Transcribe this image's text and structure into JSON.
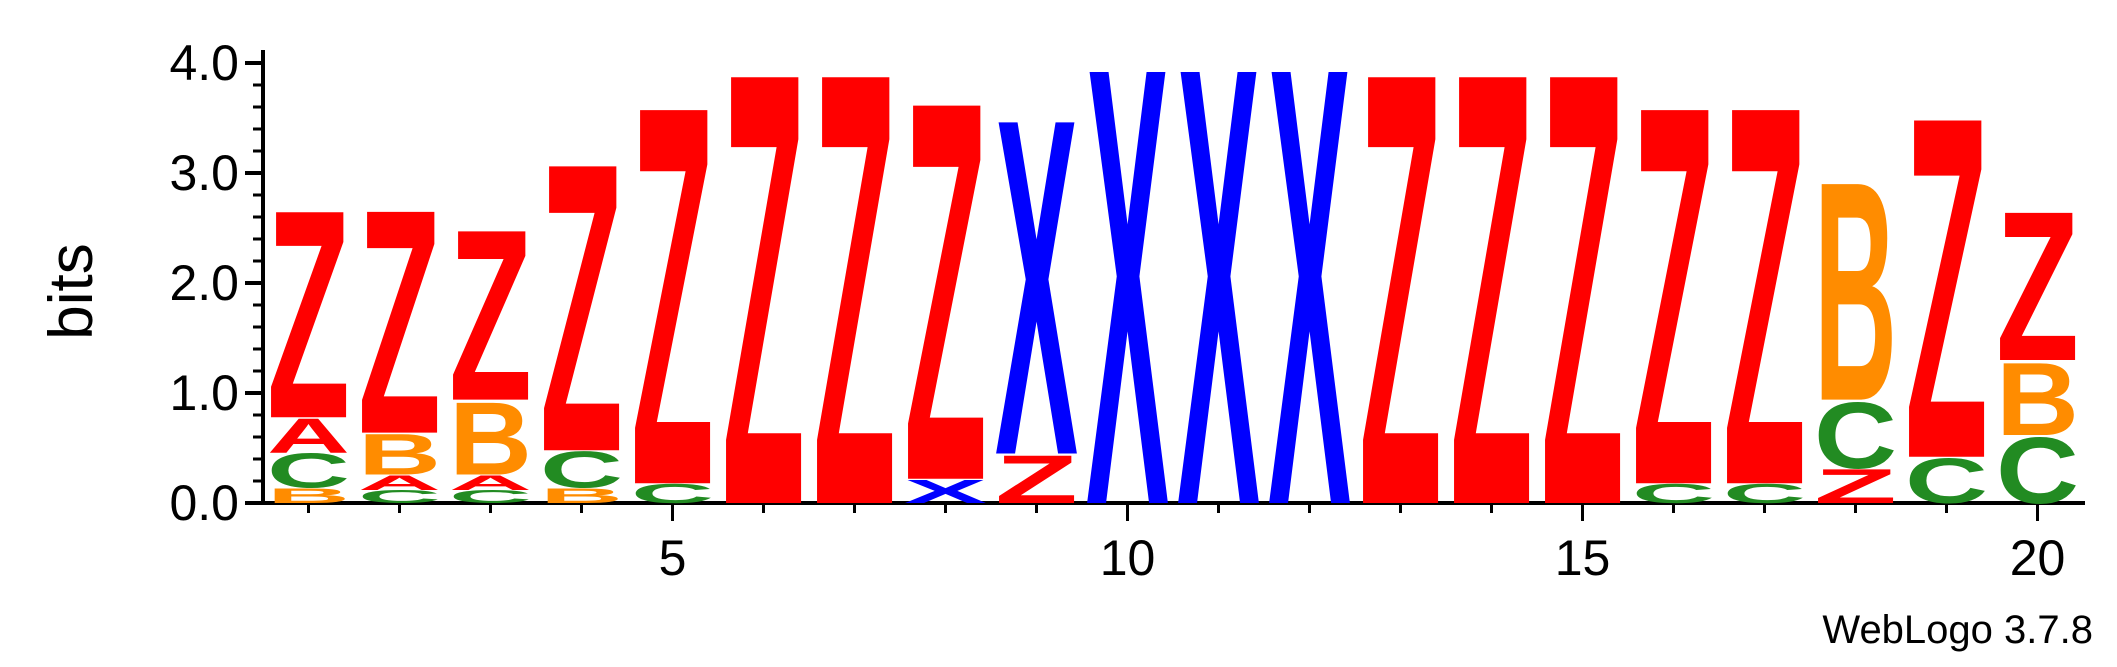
{
  "chart_data": {
    "type": "sequence-logo",
    "ylabel": "bits",
    "ylim": [
      0,
      4.0
    ],
    "yticks": [
      "0.0",
      "1.0",
      "2.0",
      "3.0",
      "4.0"
    ],
    "xticks": [
      5,
      10,
      15,
      20
    ],
    "positions": [
      1,
      2,
      3,
      4,
      5,
      6,
      7,
      8,
      9,
      10,
      11,
      12,
      13,
      14,
      15,
      16,
      17,
      18,
      19,
      20
    ],
    "colors": {
      "Z": "#ff0000",
      "A": "#ff0000",
      "X": "#0000ff",
      "B": "#ff8c00",
      "C": "#228b22"
    },
    "stacks": [
      [
        {
          "l": "B",
          "h": 0.14
        },
        {
          "l": "C",
          "h": 0.32
        },
        {
          "l": "A",
          "h": 0.32
        },
        {
          "l": "Z",
          "h": 1.95
        }
      ],
      [
        {
          "l": "C",
          "h": 0.12
        },
        {
          "l": "A",
          "h": 0.14
        },
        {
          "l": "B",
          "h": 0.38
        },
        {
          "l": "Z",
          "h": 2.1
        }
      ],
      [
        {
          "l": "C",
          "h": 0.12
        },
        {
          "l": "A",
          "h": 0.14
        },
        {
          "l": "B",
          "h": 0.68
        },
        {
          "l": "Z",
          "h": 1.6
        }
      ],
      [
        {
          "l": "B",
          "h": 0.14
        },
        {
          "l": "C",
          "h": 0.34
        },
        {
          "l": "Z",
          "h": 2.7
        }
      ],
      [
        {
          "l": "C",
          "h": 0.18
        },
        {
          "l": "Z",
          "h": 3.55
        }
      ],
      [
        {
          "l": "Z",
          "h": 4.05
        }
      ],
      [
        {
          "l": "Z",
          "h": 4.05
        }
      ],
      [
        {
          "l": "X",
          "h": 0.22
        },
        {
          "l": "Z",
          "h": 3.55
        }
      ],
      [
        {
          "l": "Z",
          "h": 0.45
        },
        {
          "l": "X",
          "h": 3.15
        }
      ],
      [
        {
          "l": "X",
          "h": 4.1
        }
      ],
      [
        {
          "l": "X",
          "h": 4.1
        }
      ],
      [
        {
          "l": "X",
          "h": 4.1
        }
      ],
      [
        {
          "l": "Z",
          "h": 4.05
        }
      ],
      [
        {
          "l": "Z",
          "h": 4.05
        }
      ],
      [
        {
          "l": "Z",
          "h": 4.05
        }
      ],
      [
        {
          "l": "C",
          "h": 0.18
        },
        {
          "l": "Z",
          "h": 3.55
        }
      ],
      [
        {
          "l": "C",
          "h": 0.18
        },
        {
          "l": "Z",
          "h": 3.55
        }
      ],
      [
        {
          "l": "Z",
          "h": 0.32
        },
        {
          "l": "C",
          "h": 0.62
        },
        {
          "l": "B",
          "h": 2.05
        }
      ],
      [
        {
          "l": "C",
          "h": 0.42
        },
        {
          "l": "Z",
          "h": 3.2
        }
      ],
      [
        {
          "l": "C",
          "h": 0.62
        },
        {
          "l": "B",
          "h": 0.68
        },
        {
          "l": "Z",
          "h": 1.4
        }
      ]
    ]
  },
  "credit": "WebLogo 3.7.8"
}
